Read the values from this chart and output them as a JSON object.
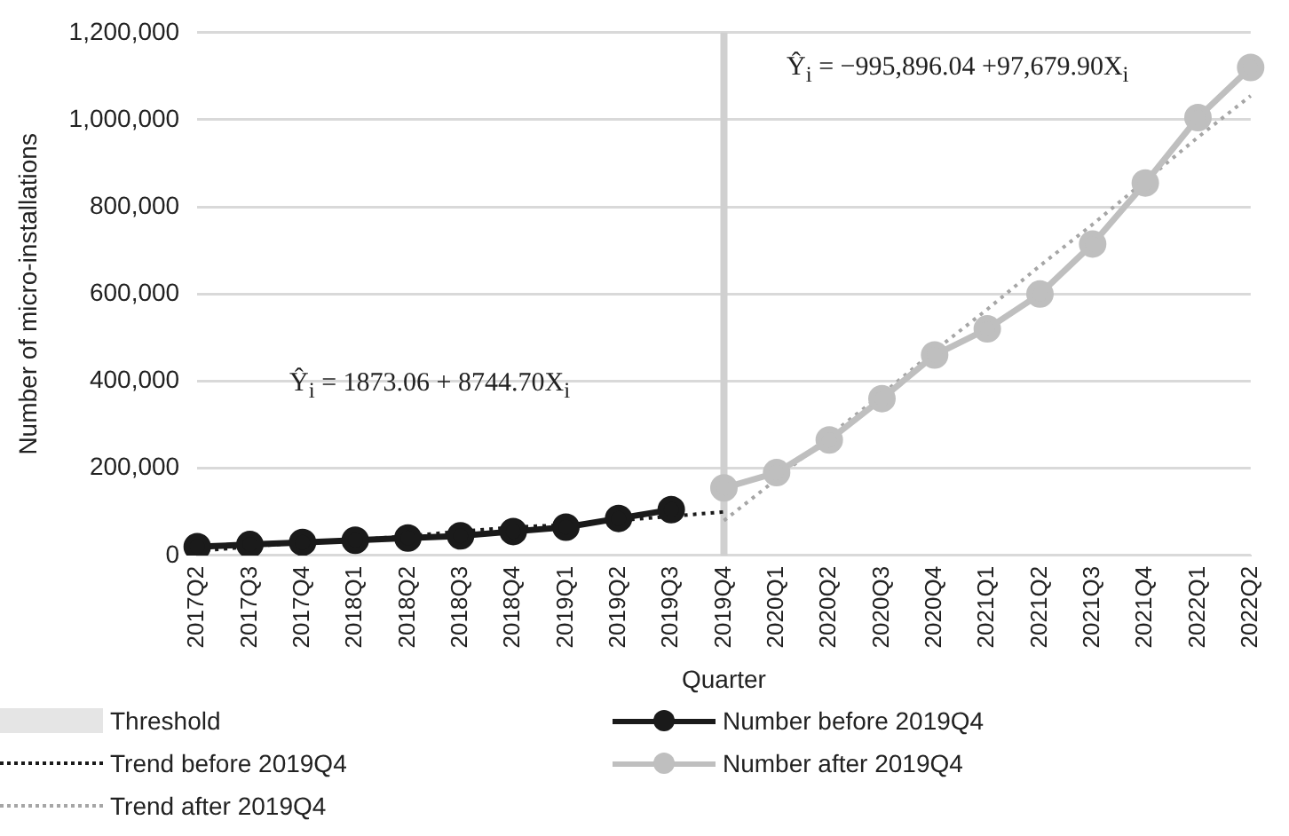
{
  "chart_data": {
    "type": "line",
    "xlabel": "Quarter",
    "ylabel": "Number of micro-installations",
    "categories": [
      "2017Q2",
      "2017Q3",
      "2017Q4",
      "2018Q1",
      "2018Q2",
      "2018Q3",
      "2018Q4",
      "2019Q1",
      "2019Q2",
      "2019Q3",
      "2019Q4",
      "2020Q1",
      "2020Q2",
      "2020Q3",
      "2020Q4",
      "2021Q1",
      "2021Q2",
      "2021Q3",
      "2021Q4",
      "2022Q1",
      "2022Q2"
    ],
    "ylim": [
      0,
      1200000
    ],
    "yticks": [
      0,
      {
        "value": 200000,
        "label": "200,000"
      },
      {
        "value": 400000,
        "label": "400,000"
      },
      {
        "value": 600000,
        "label": "600,000"
      },
      {
        "value": 800000,
        "label": "800,000"
      },
      {
        "value": 1000000,
        "label": "1,000,000"
      },
      {
        "value": 1200000,
        "label": "1,200,000"
      }
    ],
    "grid": "y",
    "legend": "bottom",
    "series": [
      {
        "name": "Number before 2019Q4",
        "color": "#1a1a1a",
        "marker": "circle",
        "line_style": "solid",
        "values": [
          20000,
          25000,
          30000,
          35000,
          40000,
          45000,
          55000,
          65000,
          85000,
          105000,
          null,
          null,
          null,
          null,
          null,
          null,
          null,
          null,
          null,
          null,
          null
        ]
      },
      {
        "name": "Trend before 2019Q4",
        "color": "#1a1a1a",
        "marker": "none",
        "line_style": "dotted",
        "values": [
          10000,
          20000,
          30000,
          35000,
          45000,
          55000,
          65000,
          70000,
          80000,
          90000,
          100000,
          null,
          null,
          null,
          null,
          null,
          null,
          null,
          null,
          null,
          null
        ]
      },
      {
        "name": "Number after 2019Q4",
        "color": "#bfbfbf",
        "marker": "circle",
        "line_style": "solid",
        "values": [
          null,
          null,
          null,
          null,
          null,
          null,
          null,
          null,
          null,
          null,
          155000,
          190000,
          265000,
          360000,
          460000,
          520000,
          600000,
          715000,
          855000,
          1005000,
          1120000
        ]
      },
      {
        "name": "Trend after 2019Q4",
        "color": "#a6a6a6",
        "marker": "none",
        "line_style": "dotted",
        "values": [
          null,
          null,
          null,
          null,
          null,
          null,
          null,
          null,
          null,
          null,
          80000,
          175000,
          275000,
          370000,
          470000,
          565000,
          665000,
          760000,
          860000,
          960000,
          1055000
        ]
      }
    ],
    "ref_lines": [
      {
        "axis": "x",
        "value": "2019Q4",
        "label": "Threshold",
        "color": "#d0d0d0"
      }
    ],
    "annotations": [
      "Ŷ$_{i}$ = 1873.06 + 8744.70X$_{i}$",
      "Ŷ$_{i}$ = −995,896.04 +97,679.90X$_{i}$"
    ]
  }
}
